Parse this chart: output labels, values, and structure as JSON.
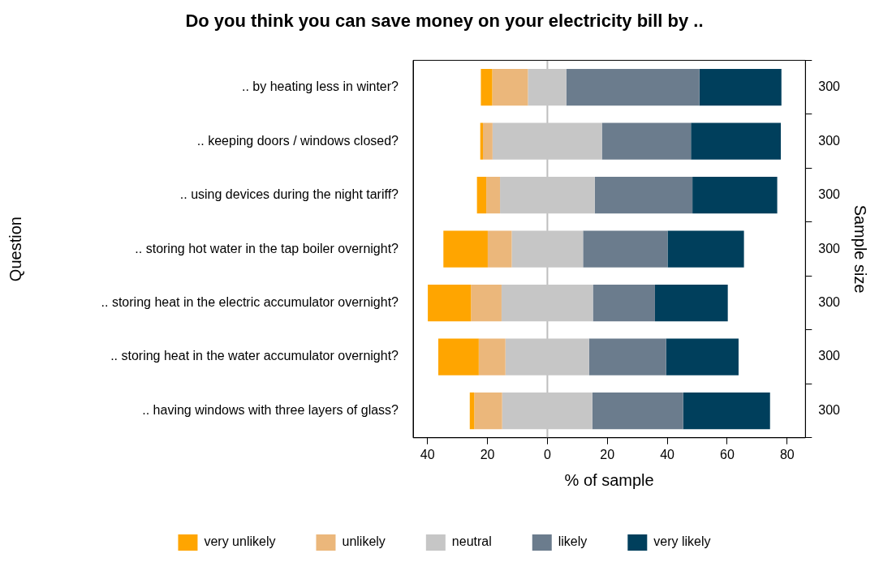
{
  "chart_data": {
    "type": "bar",
    "orientation": "horizontal",
    "title": "Do you think you can save money on your electricity bill by ..",
    "xlabel": "% of sample",
    "ylabel": "Question",
    "y2label": "Sample size",
    "categories": [
      ".. by heating less in winter?",
      ".. keeping doors / windows closed?",
      ".. using devices during the night tariff?",
      ".. storing hot water in the tap boiler overnight?",
      ".. storing heat in the electric accumulator overnight?",
      ".. storing heat in the water accumulator overnight?",
      ".. having windows with three layers of glass?"
    ],
    "y2_categories": [
      "300",
      "300",
      "300",
      "300",
      "300",
      "300",
      "300"
    ],
    "series": [
      {
        "name": "very unlikely",
        "color": "#ffa500",
        "base": [
          -22.2,
          -22.4,
          -23.5,
          -34.7,
          -39.9,
          -36.4,
          -25.9
        ],
        "values": [
          3.8,
          0.9,
          3.1,
          14.8,
          14.4,
          13.5,
          1.5
        ]
      },
      {
        "name": "unlikely",
        "color": "#ebb77b",
        "base": [
          -18.4,
          -21.5,
          -20.4,
          -19.9,
          -25.5,
          -22.9,
          -24.4
        ],
        "values": [
          11.9,
          3.2,
          4.6,
          8.0,
          10.2,
          8.9,
          9.3
        ]
      },
      {
        "name": "neutral",
        "color": "#c6c6c6",
        "base": [
          -6.5,
          -18.3,
          -15.8,
          -11.9,
          -15.3,
          -14.0,
          -15.1
        ],
        "values": [
          12.8,
          36.5,
          31.6,
          23.8,
          30.5,
          27.9,
          30.1
        ]
      },
      {
        "name": "likely",
        "color": "#6b7c8d",
        "base": [
          6.3,
          18.2,
          15.8,
          11.9,
          15.2,
          13.9,
          15.0
        ],
        "values": [
          44.4,
          29.7,
          32.6,
          28.2,
          20.7,
          25.7,
          30.3
        ]
      },
      {
        "name": "very likely",
        "color": "#003f5c",
        "base": [
          50.7,
          47.9,
          48.4,
          40.1,
          35.9,
          39.6,
          45.3
        ],
        "values": [
          27.4,
          30.0,
          28.3,
          25.5,
          24.3,
          24.2,
          29.0
        ]
      }
    ],
    "xlim": [
      -44.8,
      86.1
    ],
    "xticks": [
      {
        "value": -40,
        "label": "40"
      },
      {
        "value": -20,
        "label": "20"
      },
      0,
      20,
      40,
      60,
      80
    ],
    "ref_lines": [
      {
        "axis": "x",
        "value": 0,
        "color": "#bebebe"
      }
    ],
    "grid": false,
    "legend": "bottom"
  }
}
